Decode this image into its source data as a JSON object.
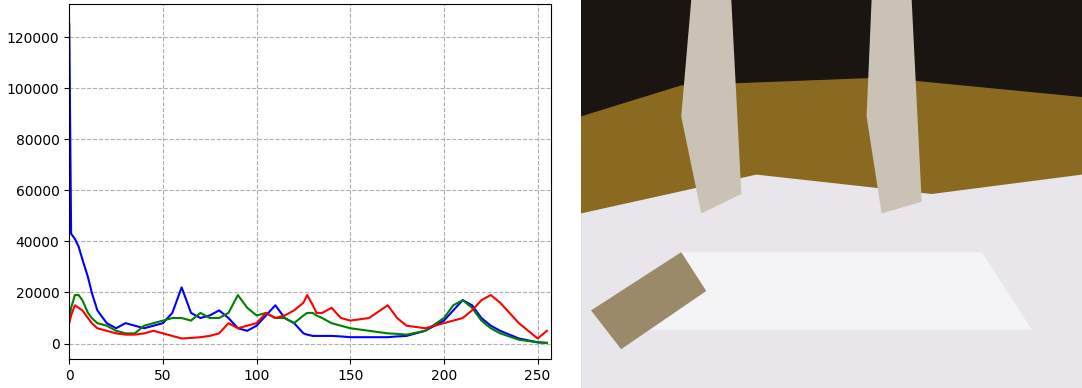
{
  "chart_data": {
    "type": "line",
    "x": [
      0,
      1,
      3,
      5,
      7,
      10,
      12,
      15,
      20,
      25,
      30,
      35,
      40,
      45,
      50,
      55,
      60,
      65,
      70,
      75,
      80,
      85,
      90,
      95,
      100,
      105,
      110,
      115,
      120,
      125,
      127,
      130,
      132,
      135,
      140,
      145,
      150,
      160,
      170,
      175,
      180,
      190,
      200,
      205,
      210,
      215,
      220,
      225,
      230,
      240,
      250,
      255
    ],
    "series": [
      {
        "color": "#0000ff",
        "values": [
          125000,
          43000,
          41000,
          38000,
          33000,
          26000,
          20000,
          13000,
          8000,
          6000,
          8000,
          7000,
          6000,
          7000,
          8000,
          12000,
          22000,
          12000,
          10000,
          11000,
          13000,
          10000,
          6000,
          5000,
          7000,
          11000,
          15000,
          10000,
          8000,
          4000,
          3500,
          3000,
          3000,
          3000,
          3000,
          2800,
          2500,
          2500,
          2500,
          2800,
          3000,
          5000,
          9000,
          13000,
          17000,
          15000,
          10000,
          7000,
          5000,
          2000,
          500,
          300
        ]
      },
      {
        "color": "#008000",
        "values": [
          10000,
          14000,
          19000,
          19000,
          17000,
          12000,
          10000,
          8000,
          7000,
          5000,
          4000,
          4000,
          7000,
          8000,
          9000,
          10000,
          10000,
          9000,
          12000,
          10000,
          10000,
          12000,
          19000,
          14000,
          11000,
          12000,
          10000,
          10000,
          8000,
          11000,
          12000,
          12000,
          11000,
          10000,
          8000,
          7000,
          6000,
          5000,
          4000,
          3800,
          3500,
          5000,
          10000,
          15000,
          17000,
          14000,
          9000,
          6000,
          4000,
          1500,
          500,
          200
        ]
      },
      {
        "color": "#ff0000",
        "values": [
          8000,
          11000,
          15000,
          14000,
          13000,
          10000,
          8000,
          6000,
          5000,
          4000,
          3500,
          3500,
          4000,
          5000,
          4000,
          3000,
          2000,
          2200,
          2500,
          3000,
          4000,
          8000,
          6000,
          7000,
          8000,
          12000,
          10000,
          11000,
          13000,
          16000,
          19000,
          15000,
          12000,
          12000,
          14000,
          10000,
          9000,
          10000,
          15000,
          10000,
          7000,
          6000,
          8000,
          9000,
          10000,
          13000,
          17000,
          19000,
          16000,
          8000,
          2000,
          5000
        ]
      }
    ],
    "xlim": [
      0,
      257
    ],
    "xticks": [
      0,
      50,
      100,
      150,
      200,
      250
    ],
    "ylim": [
      -6000,
      133000
    ],
    "yticks": [
      0,
      20000,
      40000,
      60000,
      80000,
      100000,
      120000
    ],
    "grid": true
  }
}
